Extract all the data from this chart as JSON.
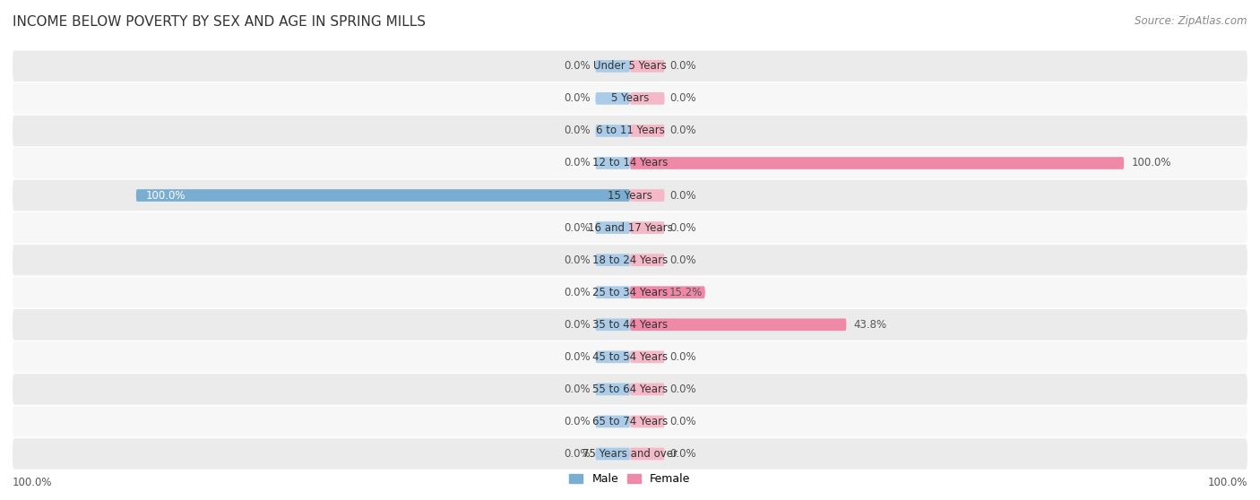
{
  "title": "INCOME BELOW POVERTY BY SEX AND AGE IN SPRING MILLS",
  "source": "Source: ZipAtlas.com",
  "categories": [
    "Under 5 Years",
    "5 Years",
    "6 to 11 Years",
    "12 to 14 Years",
    "15 Years",
    "16 and 17 Years",
    "18 to 24 Years",
    "25 to 34 Years",
    "35 to 44 Years",
    "45 to 54 Years",
    "55 to 64 Years",
    "65 to 74 Years",
    "75 Years and over"
  ],
  "male_values": [
    0.0,
    0.0,
    0.0,
    0.0,
    100.0,
    0.0,
    0.0,
    0.0,
    0.0,
    0.0,
    0.0,
    0.0,
    0.0
  ],
  "female_values": [
    0.0,
    0.0,
    0.0,
    100.0,
    0.0,
    0.0,
    0.0,
    15.2,
    43.8,
    0.0,
    0.0,
    0.0,
    0.0
  ],
  "male_color": "#7aaed0",
  "female_color": "#f088a8",
  "male_stub_color": "#aacce8",
  "female_stub_color": "#f4b8c8",
  "row_colors": [
    "#ebebeb",
    "#f7f7f7"
  ],
  "label_outside_color": "#555555",
  "label_inside_color": "#ffffff",
  "title_color": "#333333",
  "source_color": "#888888",
  "title_fontsize": 11,
  "source_fontsize": 8.5,
  "label_fontsize": 8.5,
  "category_fontsize": 8.5,
  "axis_max": 100.0,
  "stub_size": 7.0,
  "legend_male": "Male",
  "legend_female": "Female"
}
